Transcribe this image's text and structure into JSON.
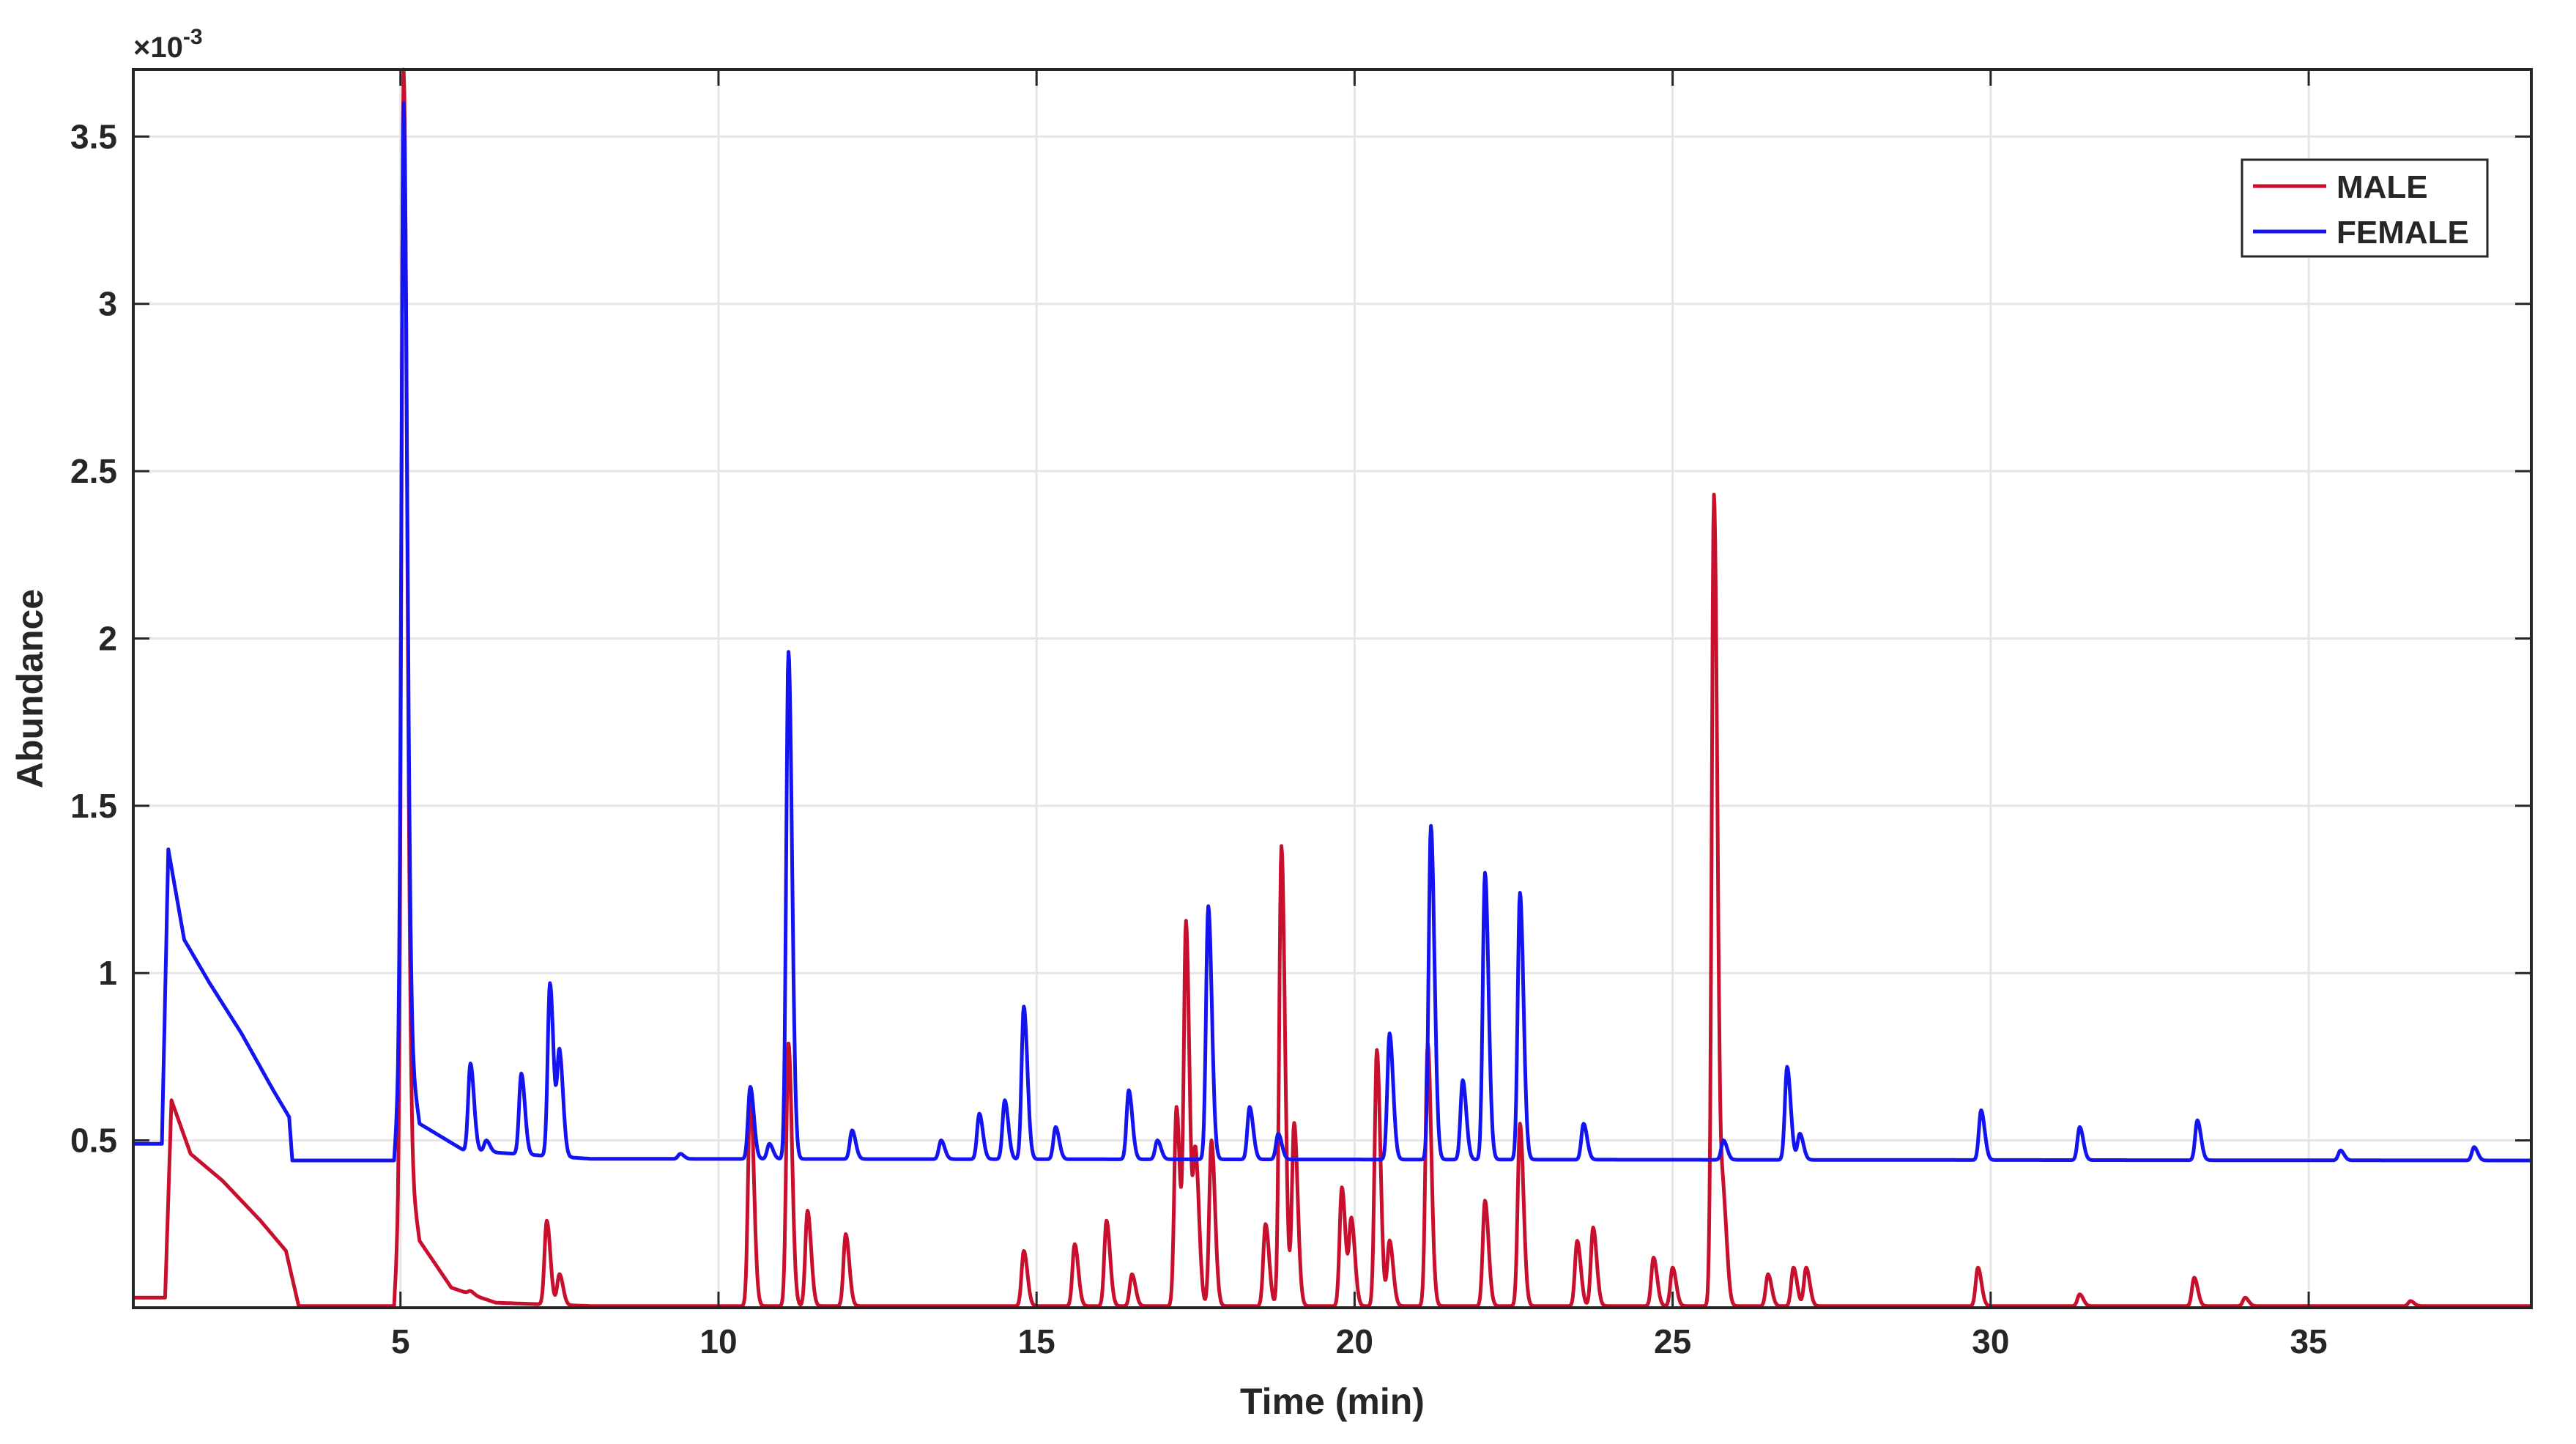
{
  "chart_data": {
    "type": "line",
    "title": "",
    "xlabel": "Time (min)",
    "ylabel": "Abundance",
    "y_exponent_label": "×10",
    "y_exponent_power": "-3",
    "xlim": [
      0.8,
      38.5
    ],
    "ylim": [
      0,
      3.7
    ],
    "x_ticks": [
      5,
      10,
      15,
      20,
      25,
      30,
      35
    ],
    "x_tick_labels": [
      "5",
      "10",
      "15",
      "20",
      "25",
      "30",
      "35"
    ],
    "y_ticks": [
      0.5,
      1,
      1.5,
      2,
      2.5,
      3,
      3.5
    ],
    "y_tick_labels": [
      "0.5",
      "1",
      "1.5",
      "2",
      "2.5",
      "3",
      "3.5"
    ],
    "grid": true,
    "legend_position": "top-right",
    "series": [
      {
        "name": "MALE",
        "color": "#c8102e",
        "baseline": [
          [
            0.8,
            0.03
          ],
          [
            1.3,
            0.03
          ],
          [
            1.4,
            0.62
          ],
          [
            1.7,
            0.46
          ],
          [
            2.2,
            0.38
          ],
          [
            2.8,
            0.26
          ],
          [
            3.2,
            0.17
          ],
          [
            3.4,
            0.005
          ],
          [
            4.9,
            0.005
          ],
          [
            5.05,
            0.55
          ],
          [
            5.3,
            0.2
          ],
          [
            5.8,
            0.06
          ],
          [
            6.5,
            0.015
          ],
          [
            8,
            0.005
          ],
          [
            38.5,
            0.005
          ]
        ],
        "peaks": [
          [
            1.45,
            0.15
          ],
          [
            1.9,
            0.2
          ],
          [
            2.65,
            0.22
          ],
          [
            3.1,
            0.05
          ],
          [
            5.05,
            3.7
          ],
          [
            6.1,
            0.05
          ],
          [
            7.3,
            0.26
          ],
          [
            7.5,
            0.1
          ],
          [
            10.5,
            0.65
          ],
          [
            11.1,
            0.79
          ],
          [
            11.4,
            0.29
          ],
          [
            12.0,
            0.22
          ],
          [
            14.8,
            0.17
          ],
          [
            15.6,
            0.19
          ],
          [
            16.1,
            0.26
          ],
          [
            16.5,
            0.1
          ],
          [
            17.2,
            0.6
          ],
          [
            17.35,
            1.14
          ],
          [
            17.5,
            0.45
          ],
          [
            17.75,
            0.5
          ],
          [
            18.6,
            0.25
          ],
          [
            18.85,
            1.38
          ],
          [
            19.05,
            0.55
          ],
          [
            19.8,
            0.36
          ],
          [
            19.95,
            0.26
          ],
          [
            20.35,
            0.77
          ],
          [
            20.55,
            0.2
          ],
          [
            21.15,
            0.79
          ],
          [
            22.05,
            0.32
          ],
          [
            22.6,
            0.55
          ],
          [
            23.5,
            0.2
          ],
          [
            23.75,
            0.24
          ],
          [
            24.7,
            0.15
          ],
          [
            25.0,
            0.12
          ],
          [
            25.65,
            2.43
          ],
          [
            25.8,
            0.3
          ],
          [
            26.5,
            0.1
          ],
          [
            26.9,
            0.12
          ],
          [
            27.1,
            0.12
          ],
          [
            29.8,
            0.12
          ],
          [
            31.4,
            0.04
          ],
          [
            33.2,
            0.09
          ],
          [
            34.0,
            0.03
          ],
          [
            36.6,
            0.02
          ]
        ]
      },
      {
        "name": "FEMALE",
        "color": "#1414f0",
        "baseline": [
          [
            0.8,
            0.49
          ],
          [
            1.25,
            0.49
          ],
          [
            1.35,
            1.37
          ],
          [
            1.6,
            1.1
          ],
          [
            2.0,
            0.97
          ],
          [
            2.5,
            0.82
          ],
          [
            3.0,
            0.65
          ],
          [
            3.25,
            0.57
          ],
          [
            3.3,
            0.44
          ],
          [
            4.9,
            0.44
          ],
          [
            5.05,
            0.9
          ],
          [
            5.3,
            0.55
          ],
          [
            6.0,
            0.47
          ],
          [
            8,
            0.445
          ],
          [
            38.5,
            0.44
          ]
        ],
        "peaks": [
          [
            1.45,
            0.2
          ],
          [
            1.9,
            0.22
          ],
          [
            2.7,
            0.12
          ],
          [
            3.0,
            0.04
          ],
          [
            5.05,
            3.6
          ],
          [
            6.1,
            0.73
          ],
          [
            6.35,
            0.5
          ],
          [
            6.9,
            0.7
          ],
          [
            7.35,
            0.97
          ],
          [
            7.5,
            0.76
          ],
          [
            9.4,
            0.46
          ],
          [
            10.5,
            0.66
          ],
          [
            10.8,
            0.49
          ],
          [
            11.1,
            1.96
          ],
          [
            12.1,
            0.53
          ],
          [
            13.5,
            0.5
          ],
          [
            14.1,
            0.58
          ],
          [
            14.5,
            0.62
          ],
          [
            14.8,
            0.9
          ],
          [
            15.3,
            0.54
          ],
          [
            16.45,
            0.65
          ],
          [
            16.9,
            0.5
          ],
          [
            17.7,
            1.2
          ],
          [
            18.35,
            0.6
          ],
          [
            18.8,
            0.52
          ],
          [
            20.55,
            0.82
          ],
          [
            21.2,
            1.44
          ],
          [
            21.7,
            0.68
          ],
          [
            22.05,
            1.3
          ],
          [
            22.6,
            1.24
          ],
          [
            23.6,
            0.55
          ],
          [
            25.8,
            0.5
          ],
          [
            26.8,
            0.72
          ],
          [
            27.0,
            0.52
          ],
          [
            29.85,
            0.59
          ],
          [
            31.4,
            0.54
          ],
          [
            33.25,
            0.56
          ],
          [
            35.5,
            0.47
          ],
          [
            37.6,
            0.48
          ]
        ]
      }
    ]
  }
}
